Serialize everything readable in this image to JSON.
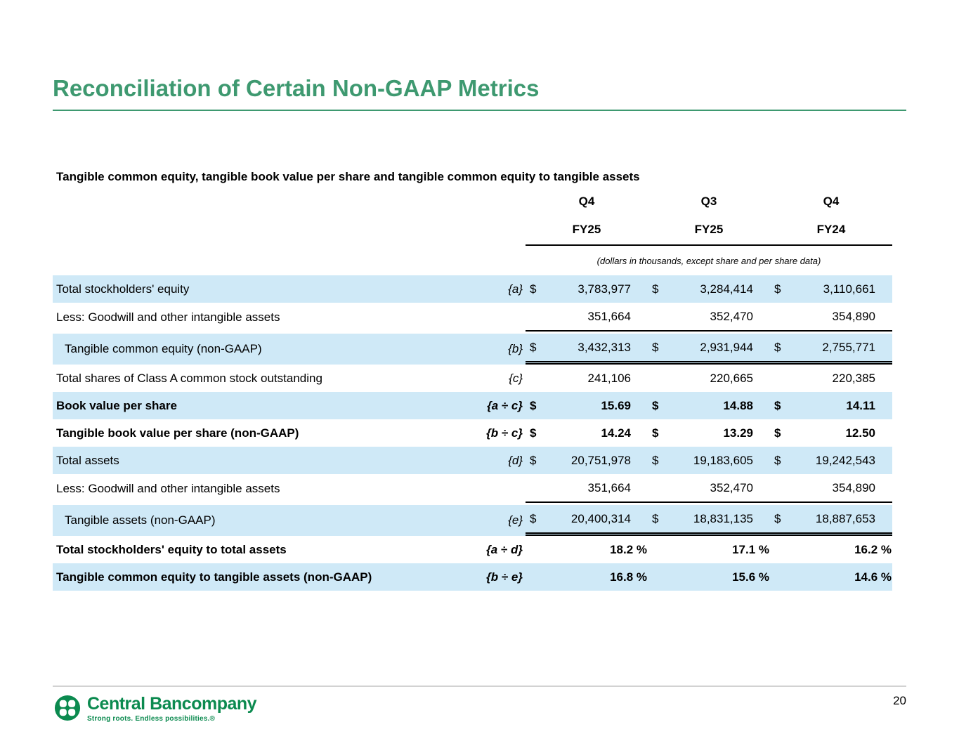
{
  "slide": {
    "title": "Reconciliation of Certain Non-GAAP Metrics",
    "page_number": "20"
  },
  "colors": {
    "title_green": "#3e9970",
    "logo_green": "#0b8a4f",
    "row_highlight_blue": "#cfe9f7"
  },
  "table": {
    "caption": "Tangible common equity, tangible book value per share and tangible common equity to tangible assets",
    "units_note": "(dollars in thousands, except share and per share data)",
    "currency_symbol": "$",
    "columns": [
      {
        "quarter": "Q4",
        "fiscal_year": "FY25"
      },
      {
        "quarter": "Q3",
        "fiscal_year": "FY25"
      },
      {
        "quarter": "Q4",
        "fiscal_year": "FY24"
      }
    ],
    "rows": [
      {
        "label": "Total stockholders' equity",
        "ref": "{a}",
        "show_currency": true,
        "values": [
          "3,783,977",
          "3,284,414",
          "3,110,661"
        ],
        "highlighted": true,
        "emphasis": false,
        "indent": false,
        "is_percent": false,
        "rule": "none"
      },
      {
        "label": "Less: Goodwill and other intangible assets",
        "ref": "",
        "show_currency": false,
        "values": [
          "351,664",
          "352,470",
          "354,890"
        ],
        "highlighted": false,
        "emphasis": false,
        "indent": false,
        "is_percent": false,
        "rule": "single"
      },
      {
        "label": "Tangible common equity (non-GAAP)",
        "ref": "{b}",
        "show_currency": true,
        "values": [
          "3,432,313",
          "2,931,944",
          "2,755,771"
        ],
        "highlighted": true,
        "emphasis": false,
        "indent": true,
        "is_percent": false,
        "rule": "double"
      },
      {
        "label": "Total shares of Class A common stock outstanding",
        "ref": "{c}",
        "show_currency": false,
        "values": [
          "241,106",
          "220,665",
          "220,385"
        ],
        "highlighted": false,
        "emphasis": false,
        "indent": false,
        "is_percent": false,
        "rule": "none"
      },
      {
        "label": "Book value per share",
        "ref": "{a ÷ c}",
        "show_currency": true,
        "values": [
          "15.69",
          "14.88",
          "14.11"
        ],
        "highlighted": true,
        "emphasis": true,
        "indent": false,
        "is_percent": false,
        "rule": "none"
      },
      {
        "label": "Tangible book value per share (non-GAAP)",
        "ref": "{b ÷ c}",
        "show_currency": true,
        "values": [
          "14.24",
          "13.29",
          "12.50"
        ],
        "highlighted": false,
        "emphasis": true,
        "indent": false,
        "is_percent": false,
        "rule": "none"
      },
      {
        "label": "Total assets",
        "ref": "{d}",
        "show_currency": true,
        "values": [
          "20,751,978",
          "19,183,605",
          "19,242,543"
        ],
        "highlighted": true,
        "emphasis": false,
        "indent": false,
        "is_percent": false,
        "rule": "none"
      },
      {
        "label": "Less: Goodwill and other intangible assets",
        "ref": "",
        "show_currency": false,
        "values": [
          "351,664",
          "352,470",
          "354,890"
        ],
        "highlighted": false,
        "emphasis": false,
        "indent": false,
        "is_percent": false,
        "rule": "single"
      },
      {
        "label": "Tangible assets (non-GAAP)",
        "ref": "{e}",
        "show_currency": true,
        "values": [
          "20,400,314",
          "18,831,135",
          "18,887,653"
        ],
        "highlighted": true,
        "emphasis": false,
        "indent": true,
        "is_percent": false,
        "rule": "double"
      },
      {
        "label": "Total stockholders' equity to total assets",
        "ref": "{a ÷ d}",
        "show_currency": false,
        "values": [
          "18.2 %",
          "17.1 %",
          "16.2 %"
        ],
        "highlighted": false,
        "emphasis": true,
        "indent": false,
        "is_percent": true,
        "rule": "none"
      },
      {
        "label": "Tangible common equity to tangible assets (non-GAAP)",
        "ref": "{b ÷ e}",
        "show_currency": false,
        "values": [
          "16.8 %",
          "15.6 %",
          "14.6 %"
        ],
        "highlighted": true,
        "emphasis": true,
        "indent": false,
        "is_percent": true,
        "rule": "none"
      }
    ]
  },
  "footer": {
    "company_name": "Central Bancompany",
    "tagline": "Strong roots. Endless possibilities.®"
  }
}
